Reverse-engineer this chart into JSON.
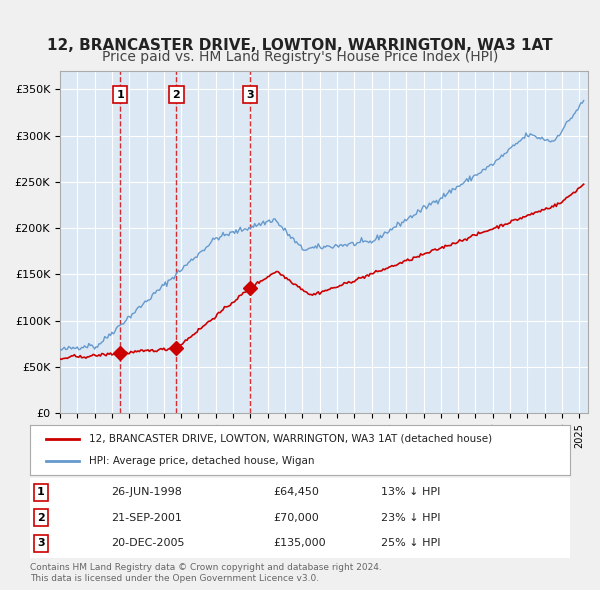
{
  "title": "12, BRANCASTER DRIVE, LOWTON, WARRINGTON, WA3 1AT",
  "subtitle": "Price paid vs. HM Land Registry's House Price Index (HPI)",
  "title_fontsize": 11,
  "subtitle_fontsize": 10,
  "bg_color": "#dce9f5",
  "plot_bg_color": "#dce9f5",
  "grid_color": "#ffffff",
  "ylabel_color": "#333333",
  "sale_dates": [
    1998.48,
    2001.72,
    2005.97
  ],
  "sale_prices": [
    64450,
    70000,
    135000
  ],
  "sale_labels": [
    "1",
    "2",
    "3"
  ],
  "legend_address": "12, BRANCASTER DRIVE, LOWTON, WARRINGTON, WA3 1AT (detached house)",
  "legend_hpi": "HPI: Average price, detached house, Wigan",
  "table_data": [
    [
      "1",
      "26-JUN-1998",
      "£64,450",
      "13% ↓ HPI"
    ],
    [
      "2",
      "21-SEP-2001",
      "£70,000",
      "23% ↓ HPI"
    ],
    [
      "3",
      "20-DEC-2005",
      "£135,000",
      "25% ↓ HPI"
    ]
  ],
  "footer_text": "Contains HM Land Registry data © Crown copyright and database right 2024.\nThis data is licensed under the Open Government Licence v3.0.",
  "address_line_color": "#cc0000",
  "hpi_line_color": "#6699cc",
  "vline_color": "#cc0000",
  "ylim": [
    0,
    370000
  ],
  "yticks": [
    0,
    50000,
    100000,
    150000,
    200000,
    250000,
    300000,
    350000
  ],
  "ytick_labels": [
    "£0",
    "£50K",
    "£100K",
    "£150K",
    "£200K",
    "£250K",
    "£300K",
    "£350K"
  ],
  "xmin": 1995.0,
  "xmax": 2025.5
}
